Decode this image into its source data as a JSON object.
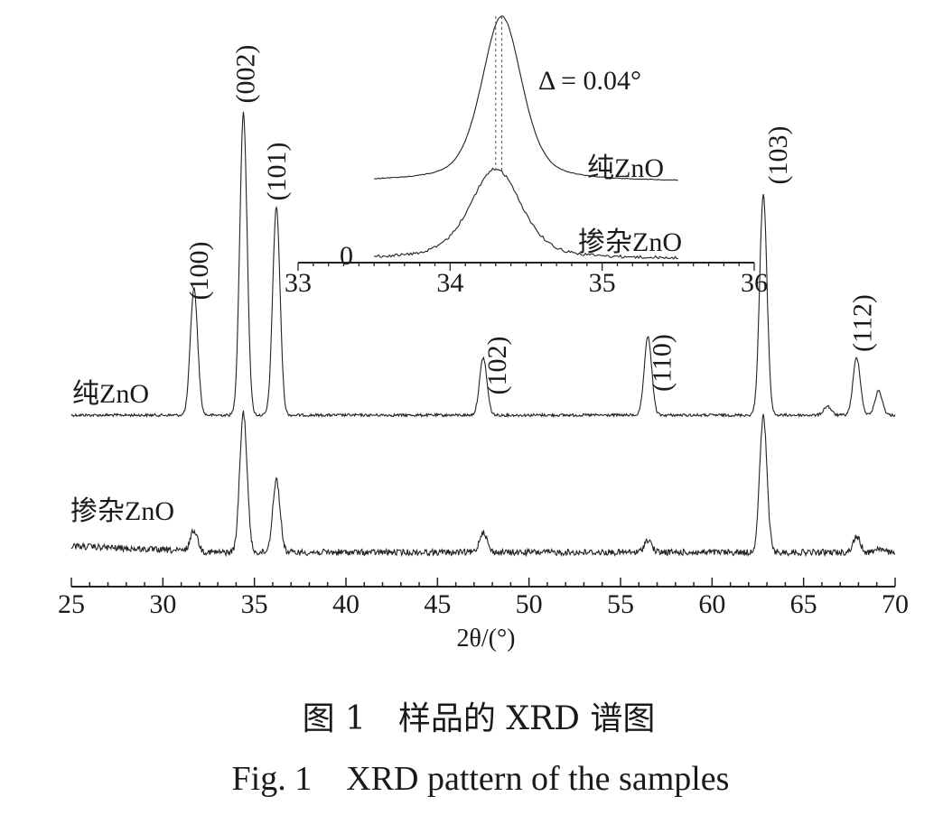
{
  "chart_data": {
    "type": "line",
    "xlabel": "2θ/(°)",
    "xlim": [
      25,
      70
    ],
    "x_ticks": [
      25,
      30,
      35,
      40,
      45,
      50,
      55,
      60,
      65,
      70
    ],
    "y_axis_shown": false,
    "series": [
      {
        "name": "纯ZnO",
        "peaks": [
          {
            "x": 31.7,
            "rel_intensity": 0.42
          },
          {
            "x": 34.4,
            "rel_intensity": 1.0
          },
          {
            "x": 36.2,
            "rel_intensity": 0.69
          },
          {
            "x": 47.5,
            "rel_intensity": 0.19
          },
          {
            "x": 56.5,
            "rel_intensity": 0.26
          },
          {
            "x": 62.8,
            "rel_intensity": 0.73
          },
          {
            "x": 66.3,
            "rel_intensity": 0.03
          },
          {
            "x": 67.9,
            "rel_intensity": 0.19
          },
          {
            "x": 69.1,
            "rel_intensity": 0.08
          }
        ]
      },
      {
        "name": "掺杂ZnO",
        "peaks": [
          {
            "x": 31.7,
            "rel_intensity": 0.15
          },
          {
            "x": 34.4,
            "rel_intensity": 1.0
          },
          {
            "x": 36.2,
            "rel_intensity": 0.52
          },
          {
            "x": 47.5,
            "rel_intensity": 0.15
          },
          {
            "x": 56.5,
            "rel_intensity": 0.09
          },
          {
            "x": 62.8,
            "rel_intensity": 0.97
          },
          {
            "x": 67.9,
            "rel_intensity": 0.11
          },
          {
            "x": 69.1,
            "rel_intensity": 0.03
          }
        ]
      }
    ],
    "annotations": [
      {
        "text": "(100)",
        "x": 31.7
      },
      {
        "text": "(002)",
        "x": 34.4
      },
      {
        "text": "(101)",
        "x": 36.2
      },
      {
        "text": "(102)",
        "x": 47.5
      },
      {
        "text": "(110)",
        "x": 56.5
      },
      {
        "text": "(103)",
        "x": 62.8
      },
      {
        "text": "(112)",
        "x": 67.9
      }
    ],
    "inset": {
      "type": "line",
      "xlim": [
        33,
        36
      ],
      "x_ticks": [
        33,
        34,
        35,
        36
      ],
      "y_tick_label": "0",
      "annotation": "Δ = 0.04°",
      "series": [
        {
          "name": "纯ZnO",
          "peak_x": 34.34
        },
        {
          "name": "掺杂ZnO",
          "peak_x": 34.3
        }
      ]
    }
  },
  "caption": {
    "cn": "图 1　样品的 XRD 谱图",
    "en": "Fig. 1　XRD pattern of the samples"
  }
}
